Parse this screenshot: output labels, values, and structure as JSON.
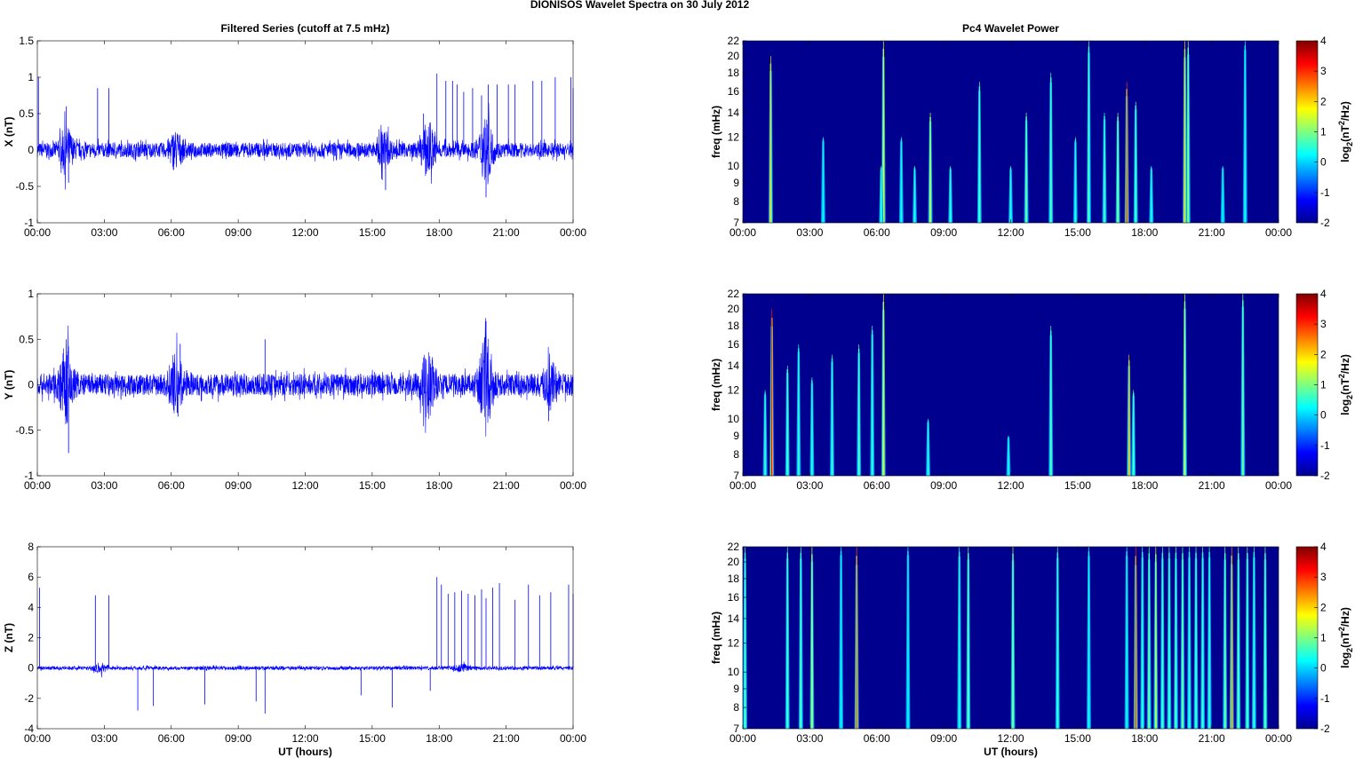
{
  "title": "DIONISOS Wavelet Spectra on 30 July      2012",
  "chart_data": [
    {
      "type": "line",
      "title": "Filtered Series (cutoff at 7.5 mHz)",
      "ylabel": "X (nT)",
      "xlabel": "",
      "ylim": [
        -1,
        1.5
      ],
      "yticks": [
        -1,
        -0.5,
        0,
        0.5,
        1,
        1.5
      ],
      "xlim": [
        0,
        24
      ],
      "xticks": [
        "00:00",
        "03:00",
        "06:00",
        "09:00",
        "12:00",
        "15:00",
        "18:00",
        "21:00",
        "00:00"
      ],
      "color": "#0000ff",
      "noise_amp": 0.1,
      "bursts": [
        [
          1.3,
          0.25
        ],
        [
          6.2,
          0.2
        ],
        [
          17.5,
          0.3
        ],
        [
          20.1,
          0.4
        ],
        [
          15.5,
          0.2
        ]
      ],
      "spikes": [
        [
          0.05,
          1.0
        ],
        [
          1.3,
          0.6
        ],
        [
          1.4,
          -0.45
        ],
        [
          2.7,
          0.85
        ],
        [
          3.2,
          0.85
        ],
        [
          15.6,
          -0.55
        ],
        [
          17.3,
          0.5
        ],
        [
          17.9,
          1.05
        ],
        [
          18.3,
          0.95
        ],
        [
          18.6,
          0.95
        ],
        [
          18.8,
          0.9
        ],
        [
          19.1,
          0.8
        ],
        [
          19.5,
          0.85
        ],
        [
          19.9,
          0.75
        ],
        [
          20.1,
          -0.65
        ],
        [
          20.2,
          0.9
        ],
        [
          20.6,
          0.9
        ],
        [
          21.1,
          0.9
        ],
        [
          21.4,
          0.9
        ],
        [
          22.2,
          0.95
        ],
        [
          22.6,
          0.95
        ],
        [
          23.2,
          1.0
        ],
        [
          23.9,
          1.0
        ],
        [
          24,
          0.85
        ]
      ]
    },
    {
      "type": "line",
      "title": "",
      "ylabel": "Y (nT)",
      "xlabel": "",
      "ylim": [
        -1,
        1
      ],
      "yticks": [
        -1,
        -0.5,
        0,
        0.5,
        1
      ],
      "xlim": [
        0,
        24
      ],
      "xticks": [
        "00:00",
        "03:00",
        "06:00",
        "09:00",
        "12:00",
        "15:00",
        "18:00",
        "21:00",
        "00:00"
      ],
      "color": "#0000ff",
      "noise_amp": 0.12,
      "bursts": [
        [
          1.3,
          0.35
        ],
        [
          6.2,
          0.25
        ],
        [
          17.5,
          0.3
        ],
        [
          20.1,
          0.45
        ],
        [
          23.0,
          0.2
        ]
      ],
      "spikes": [
        [
          1.3,
          0.5
        ],
        [
          1.4,
          -0.75
        ],
        [
          6.4,
          0.45
        ],
        [
          10.2,
          0.5
        ],
        [
          20.1,
          0.7
        ],
        [
          22.9,
          -0.4
        ],
        [
          6.3,
          -0.35
        ]
      ]
    },
    {
      "type": "line",
      "title": "",
      "ylabel": "Z (nT)",
      "xlabel": "UT (hours)",
      "ylim": [
        -4,
        8
      ],
      "yticks": [
        -4,
        -2,
        0,
        2,
        4,
        6,
        8
      ],
      "xlim": [
        0,
        24
      ],
      "xticks": [
        "00:00",
        "03:00",
        "06:00",
        "09:00",
        "12:00",
        "15:00",
        "18:00",
        "21:00",
        "00:00"
      ],
      "color": "#0000ff",
      "noise_amp": 0.12,
      "bursts": [
        [
          2.8,
          0.3
        ],
        [
          19,
          0.2
        ]
      ],
      "spikes": [
        [
          0.1,
          5.3
        ],
        [
          2.6,
          4.8
        ],
        [
          3.2,
          4.8
        ],
        [
          4.5,
          -2.8
        ],
        [
          5.2,
          -2.5
        ],
        [
          7.5,
          -2.4
        ],
        [
          9.8,
          -2.2
        ],
        [
          10.2,
          -3.0
        ],
        [
          14.5,
          -1.8
        ],
        [
          15.9,
          -2.6
        ],
        [
          17.6,
          -1.5
        ],
        [
          17.9,
          6.0
        ],
        [
          18.1,
          5.5
        ],
        [
          18.4,
          4.9
        ],
        [
          18.7,
          5.0
        ],
        [
          19.0,
          5.1
        ],
        [
          19.3,
          4.9
        ],
        [
          19.6,
          4.8
        ],
        [
          19.9,
          5.2
        ],
        [
          20.1,
          4.6
        ],
        [
          20.4,
          5.3
        ],
        [
          20.7,
          5.6
        ],
        [
          21.4,
          4.5
        ],
        [
          22.0,
          5.5
        ],
        [
          22.5,
          4.8
        ],
        [
          23.0,
          5.0
        ],
        [
          23.8,
          5.5
        ],
        [
          24,
          4.9
        ]
      ]
    },
    {
      "type": "heatmap",
      "title": "Pc4 Wavelet Power",
      "ylabel": "freq (mHz)",
      "xlabel": "",
      "ylim": [
        7,
        22
      ],
      "yscale": "log",
      "yticks": [
        7,
        8,
        9,
        10,
        12,
        14,
        16,
        18,
        20,
        22
      ],
      "xticks": [
        "00:00",
        "03:00",
        "06:00",
        "09:00",
        "12:00",
        "15:00",
        "18:00",
        "21:00",
        "00:00"
      ],
      "clim": [
        -2,
        4
      ],
      "colorbar_label": "log2(nT^2/Hz)",
      "cticks": [
        -2,
        -1,
        0,
        1,
        2,
        3,
        4
      ],
      "events": [
        [
          1.25,
          20,
          2.0
        ],
        [
          3.6,
          12,
          0.3
        ],
        [
          6.3,
          22,
          1.8
        ],
        [
          6.2,
          10,
          0.6
        ],
        [
          7.1,
          12,
          0.4
        ],
        [
          7.7,
          10,
          0.5
        ],
        [
          8.4,
          14,
          1.5
        ],
        [
          9.3,
          10,
          0.6
        ],
        [
          10.6,
          17,
          0.8
        ],
        [
          12.0,
          10,
          0.5
        ],
        [
          12.7,
          14,
          1.0
        ],
        [
          13.8,
          18,
          0.8
        ],
        [
          14.9,
          12,
          0.5
        ],
        [
          15.5,
          22,
          0.8
        ],
        [
          16.2,
          14,
          0.7
        ],
        [
          16.8,
          14,
          1.2
        ],
        [
          17.2,
          17,
          3.0
        ],
        [
          17.6,
          15,
          0.8
        ],
        [
          18.3,
          10,
          0.5
        ],
        [
          19.8,
          22,
          2.0
        ],
        [
          19.95,
          22,
          1.2
        ],
        [
          21.5,
          10,
          0.3
        ],
        [
          22.5,
          22,
          0.4
        ]
      ]
    },
    {
      "type": "heatmap",
      "title": "",
      "ylabel": "freq (mHz)",
      "xlabel": "",
      "ylim": [
        7,
        22
      ],
      "yscale": "log",
      "yticks": [
        7,
        8,
        9,
        10,
        12,
        14,
        16,
        18,
        20,
        22
      ],
      "xticks": [
        "00:00",
        "03:00",
        "06:00",
        "09:00",
        "12:00",
        "15:00",
        "18:00",
        "21:00",
        "00:00"
      ],
      "clim": [
        -2,
        4
      ],
      "colorbar_label": "log2(nT^2/Hz)",
      "cticks": [
        -2,
        -1,
        0,
        1,
        2,
        3,
        4
      ],
      "events": [
        [
          1.3,
          20,
          3.2
        ],
        [
          1.0,
          12,
          0.6
        ],
        [
          2.0,
          14,
          0.8
        ],
        [
          2.5,
          16,
          0.6
        ],
        [
          3.1,
          13,
          0.6
        ],
        [
          4.0,
          15,
          0.6
        ],
        [
          5.2,
          16,
          0.8
        ],
        [
          5.8,
          18,
          0.6
        ],
        [
          6.3,
          22,
          1.8
        ],
        [
          8.3,
          10,
          0.5
        ],
        [
          11.9,
          9,
          0.4
        ],
        [
          13.8,
          18,
          0.8
        ],
        [
          17.3,
          15,
          2.2
        ],
        [
          17.5,
          12,
          0.8
        ],
        [
          19.8,
          22,
          1.5
        ],
        [
          22.4,
          22,
          1.0
        ]
      ]
    },
    {
      "type": "heatmap",
      "title": "",
      "ylabel": "freq (mHz)",
      "xlabel": "UT (hours)",
      "ylim": [
        7,
        22
      ],
      "yscale": "log",
      "yticks": [
        7,
        8,
        9,
        10,
        12,
        14,
        16,
        18,
        20,
        22
      ],
      "xticks": [
        "00:00",
        "03:00",
        "06:00",
        "09:00",
        "12:00",
        "15:00",
        "18:00",
        "21:00",
        "00:00"
      ],
      "clim": [
        -2,
        4
      ],
      "colorbar_label": "log2(nT^2/Hz)",
      "cticks": [
        -2,
        -1,
        0,
        1,
        2,
        3,
        4
      ],
      "events": [
        [
          0.1,
          22,
          0.8
        ],
        [
          2.0,
          22,
          0.8
        ],
        [
          2.6,
          22,
          0.8
        ],
        [
          3.1,
          22,
          1.5
        ],
        [
          4.4,
          22,
          0.3
        ],
        [
          5.1,
          22,
          2.8
        ],
        [
          7.4,
          22,
          0.3
        ],
        [
          9.7,
          22,
          0.5
        ],
        [
          10.1,
          22,
          1.0
        ],
        [
          12.1,
          22,
          1.2
        ],
        [
          14.1,
          22,
          0.7
        ],
        [
          15.5,
          22,
          0.4
        ],
        [
          17.2,
          22,
          0.4
        ],
        [
          17.6,
          22,
          3.0
        ],
        [
          17.9,
          22,
          0.6
        ],
        [
          18.2,
          22,
          1.0
        ],
        [
          18.5,
          22,
          1.5
        ],
        [
          18.8,
          22,
          0.8
        ],
        [
          19.1,
          22,
          0.8
        ],
        [
          19.4,
          22,
          0.8
        ],
        [
          19.7,
          22,
          1.0
        ],
        [
          20.0,
          22,
          0.6
        ],
        [
          20.3,
          22,
          0.8
        ],
        [
          20.6,
          22,
          0.7
        ],
        [
          20.9,
          22,
          0.6
        ],
        [
          21.6,
          22,
          1.0
        ],
        [
          21.9,
          22,
          2.5
        ],
        [
          22.2,
          22,
          1.0
        ],
        [
          22.6,
          22,
          0.9
        ],
        [
          22.9,
          22,
          0.6
        ],
        [
          23.4,
          22,
          1.0
        ]
      ]
    }
  ]
}
